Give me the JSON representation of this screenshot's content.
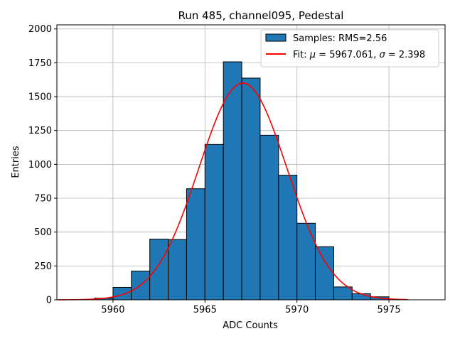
{
  "chart_data": {
    "type": "bar",
    "title": "Run 485, channel095, Pedestal",
    "xlabel": "ADC Counts",
    "ylabel": "Entries",
    "xlim": [
      5956.95,
      5978.05
    ],
    "ylim": [
      0,
      2030
    ],
    "xticks": [
      5960,
      5965,
      5970,
      5975
    ],
    "yticks": [
      0,
      250,
      500,
      750,
      1000,
      1250,
      1500,
      1750,
      2000
    ],
    "grid": true,
    "legend_position": "top-right",
    "histogram": {
      "name": "Samples: RMS=2.56",
      "color": "#1f77b4",
      "edgecolor": "#000000",
      "bins": [
        {
          "x0": 5959,
          "x1": 5960,
          "count": 12
        },
        {
          "x0": 5960,
          "x1": 5961,
          "count": 92
        },
        {
          "x0": 5961,
          "x1": 5962,
          "count": 212
        },
        {
          "x0": 5962,
          "x1": 5963,
          "count": 448
        },
        {
          "x0": 5963,
          "x1": 5964,
          "count": 445
        },
        {
          "x0": 5964,
          "x1": 5965,
          "count": 820
        },
        {
          "x0": 5965,
          "x1": 5966,
          "count": 1147
        },
        {
          "x0": 5966,
          "x1": 5967,
          "count": 1757
        },
        {
          "x0": 5967,
          "x1": 5968,
          "count": 1637
        },
        {
          "x0": 5968,
          "x1": 5969,
          "count": 1215
        },
        {
          "x0": 5969,
          "x1": 5970,
          "count": 920
        },
        {
          "x0": 5970,
          "x1": 5971,
          "count": 565
        },
        {
          "x0": 5971,
          "x1": 5972,
          "count": 392
        },
        {
          "x0": 5972,
          "x1": 5973,
          "count": 95
        },
        {
          "x0": 5973,
          "x1": 5974,
          "count": 45
        },
        {
          "x0": 5974,
          "x1": 5975,
          "count": 22
        },
        {
          "x0": 5975,
          "x1": 5976,
          "count": 3
        }
      ]
    },
    "fit": {
      "label_prefix": "Fit: ",
      "mu_symbol": "μ",
      "mu_text": " = 5967.061, ",
      "sigma_symbol": "σ",
      "sigma_text": " = 2.398",
      "color": "#ff0000",
      "mu": 5967.061,
      "sigma": 2.398,
      "amplitude": 1600,
      "x_range": [
        5957,
        5976
      ]
    }
  }
}
